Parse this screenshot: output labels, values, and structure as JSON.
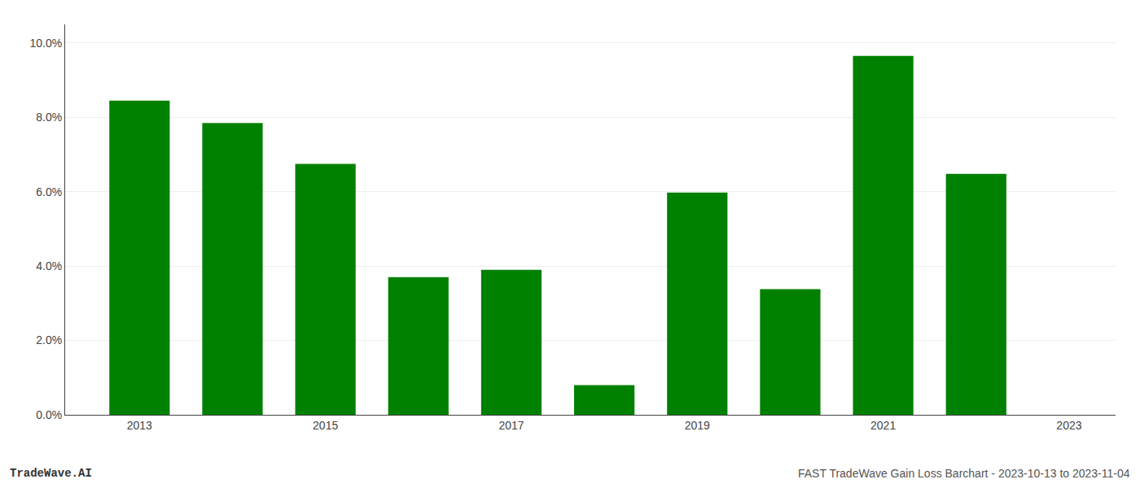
{
  "chart_data": {
    "type": "bar",
    "x": [
      2013,
      2014,
      2015,
      2016,
      2017,
      2018,
      2019,
      2020,
      2021,
      2022
    ],
    "values": [
      0.0845,
      0.0785,
      0.0675,
      0.037,
      0.039,
      0.008,
      0.0598,
      0.0338,
      0.0965,
      0.0648
    ],
    "color": "#008000",
    "xlim": [
      2012.2,
      2023.5
    ],
    "xticks": [
      2013,
      2015,
      2017,
      2019,
      2021,
      2023
    ],
    "ylim": [
      0,
      0.105
    ],
    "yticks": [
      {
        "value": 0.0,
        "label": "0.0%"
      },
      {
        "value": 0.02,
        "label": "2.0%"
      },
      {
        "value": 0.04,
        "label": "4.0%"
      },
      {
        "value": 0.06,
        "label": "6.0%"
      },
      {
        "value": 0.08,
        "label": "8.0%"
      },
      {
        "value": 0.1,
        "label": "10.0%"
      }
    ],
    "grid": true,
    "annotations": [
      "TradeWave.AI",
      "FAST TradeWave Gain Loss Barchart - 2023-10-13 to 2023-11-04"
    ]
  }
}
